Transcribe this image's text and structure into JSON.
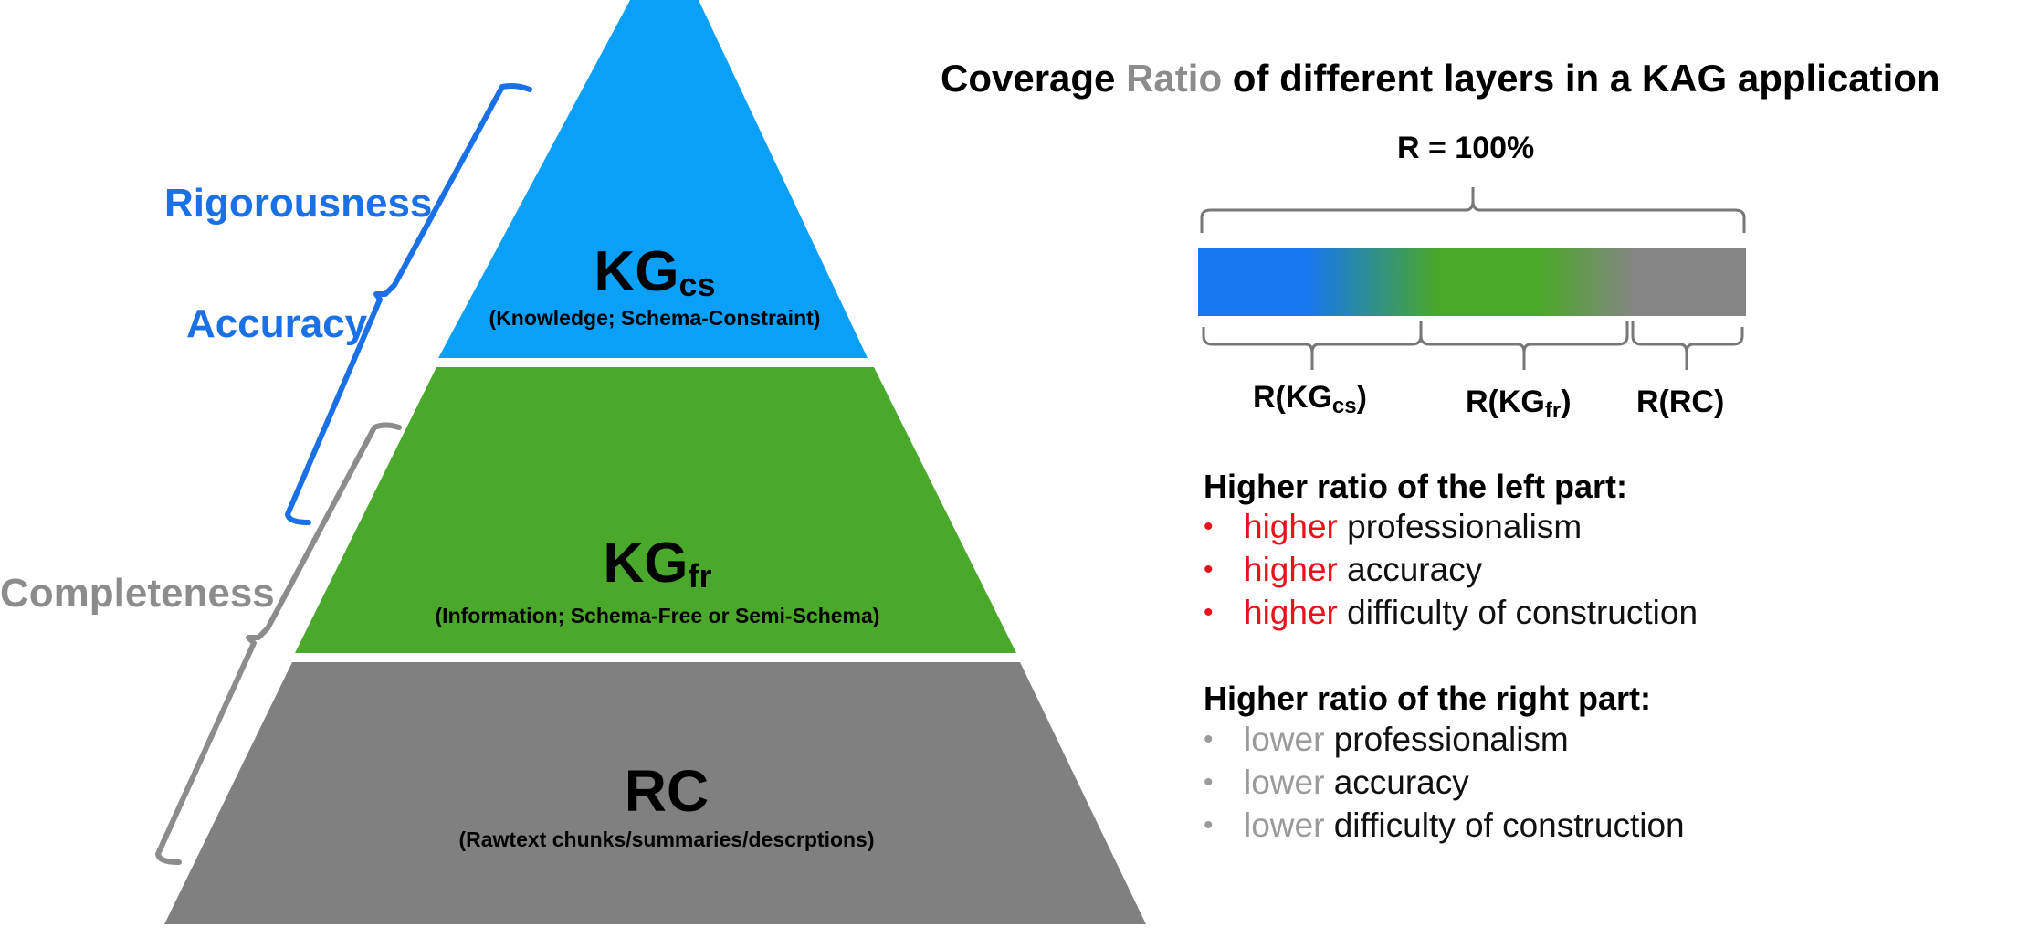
{
  "title": {
    "prefix": "Coverage ",
    "highlight": "Ratio",
    "suffix": " of different layers in a KAG application"
  },
  "colors": {
    "kgcs": "#0aa0f7",
    "kgfr": "#4aa82a",
    "rc": "#808080",
    "accuracy_brace": "#1a70e6",
    "completeness_brace": "#8c8c8c",
    "highlight_red": "#e8121c",
    "highlight_gray": "#9a9a9a",
    "bar_blue": "#1677f0",
    "bar_green": "#4aa828",
    "bar_gray": "#858585"
  },
  "pyramid": {
    "kgcs": {
      "name": "KG",
      "sub": "cs",
      "desc": "(Knowledge; Schema-Constraint)"
    },
    "kgfr": {
      "name": "KG",
      "sub": "fr",
      "desc": "(Information; Schema-Free or Semi-Schema)"
    },
    "rc": {
      "name": "RC",
      "desc": "(Rawtext chunks/summaries/descrptions)"
    }
  },
  "side_labels": {
    "rigorousness": "Rigorousness",
    "accuracy": "Accuracy",
    "completeness": "Completeness"
  },
  "ratio_bar": {
    "total_label": "R = 100%",
    "kgcs_label_prefix": "R(KG",
    "kgcs_label_sub": "cs",
    "kgcs_label_suffix": ")",
    "kgfr_label_prefix": "R(KG",
    "kgfr_label_sub": "fr",
    "kgfr_label_suffix": ")",
    "rc_label": "R(RC)"
  },
  "left_part": {
    "heading": "Higher ratio of the left part:",
    "items": [
      {
        "marker": "•",
        "keyword": "higher",
        "rest": " professionalism"
      },
      {
        "marker": "•",
        "keyword": "higher",
        "rest": " accuracy"
      },
      {
        "marker": "•",
        "keyword": "higher",
        "rest": " difficulty of construction"
      }
    ]
  },
  "right_part": {
    "heading": "Higher ratio of the right part:",
    "items": [
      {
        "marker": "•",
        "keyword": "lower",
        "rest": " professionalism"
      },
      {
        "marker": "•",
        "keyword": "lower",
        "rest": " accuracy"
      },
      {
        "marker": "•",
        "keyword": "lower",
        "rest": " difficulty of construction"
      }
    ]
  }
}
